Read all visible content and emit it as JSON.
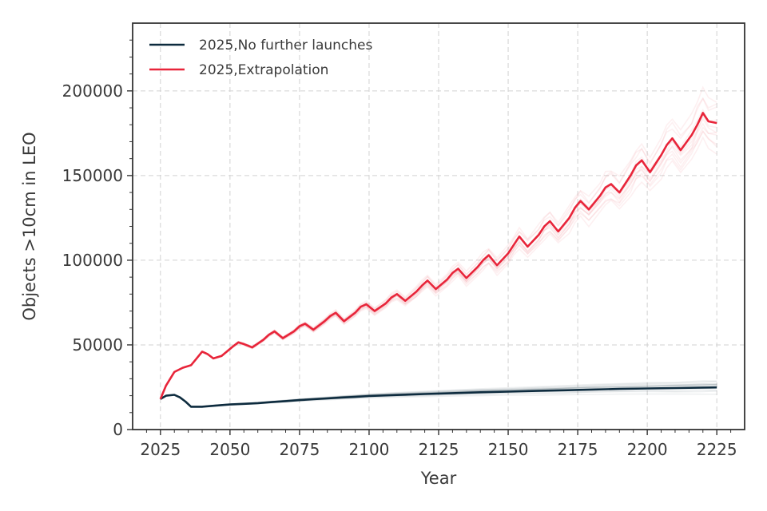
{
  "chart_data": {
    "type": "line",
    "xlabel": "Year",
    "ylabel": "Objects >10cm in LEO",
    "xlim": [
      2015,
      2235
    ],
    "ylim": [
      0,
      240000
    ],
    "xticks": [
      2025,
      2050,
      2075,
      2100,
      2125,
      2150,
      2175,
      2200,
      2225
    ],
    "yticks": [
      0,
      50000,
      100000,
      150000,
      200000
    ],
    "grid": true,
    "legend_position": "top-left",
    "series": [
      {
        "name": "2025,No further launches",
        "color": "#0d2b3e",
        "x": [
          2025,
          2027,
          2030,
          2032,
          2034,
          2036,
          2040,
          2045,
          2050,
          2055,
          2060,
          2065,
          2070,
          2075,
          2080,
          2085,
          2090,
          2095,
          2100,
          2110,
          2120,
          2130,
          2140,
          2150,
          2160,
          2170,
          2180,
          2190,
          2200,
          2210,
          2220,
          2225
        ],
        "y": [
          18000,
          20000,
          20500,
          19000,
          16500,
          13500,
          13500,
          14200,
          14800,
          15200,
          15600,
          16200,
          16800,
          17400,
          17900,
          18400,
          18900,
          19300,
          19800,
          20400,
          21000,
          21500,
          22000,
          22400,
          22800,
          23200,
          23600,
          24000,
          24300,
          24500,
          24800,
          24900
        ]
      },
      {
        "name": "2025,Extrapolation",
        "color": "#e8253a",
        "x": [
          2025,
          2027,
          2030,
          2033,
          2036,
          2038,
          2040,
          2042,
          2044,
          2047,
          2051,
          2053,
          2055,
          2058,
          2062,
          2064,
          2066,
          2069,
          2073,
          2075,
          2077,
          2080,
          2084,
          2086,
          2088,
          2091,
          2095,
          2097,
          2099,
          2102,
          2106,
          2108,
          2110,
          2113,
          2117,
          2119,
          2121,
          2124,
          2128,
          2130,
          2132,
          2135,
          2139,
          2141,
          2143,
          2146,
          2150,
          2152,
          2154,
          2157,
          2161,
          2163,
          2165,
          2168,
          2172,
          2174,
          2176,
          2179,
          2183,
          2185,
          2187,
          2190,
          2194,
          2196,
          2198,
          2201,
          2205,
          2207,
          2209,
          2212,
          2216,
          2218,
          2220,
          2222,
          2225
        ],
        "y": [
          18000,
          26000,
          34000,
          36500,
          38000,
          42000,
          46000,
          44500,
          42000,
          43500,
          49000,
          51500,
          50500,
          48500,
          53000,
          56000,
          58000,
          54000,
          58000,
          61000,
          62500,
          59000,
          64000,
          67000,
          69000,
          64000,
          69000,
          72500,
          74000,
          70000,
          74500,
          78000,
          80000,
          76000,
          81500,
          85000,
          88000,
          83000,
          88500,
          92500,
          95000,
          89500,
          96000,
          100000,
          103000,
          97000,
          104000,
          109000,
          114000,
          108000,
          115000,
          120000,
          123000,
          117000,
          125000,
          131000,
          135000,
          130000,
          138000,
          143000,
          145000,
          140000,
          150000,
          156000,
          159000,
          152000,
          162000,
          168000,
          172000,
          165000,
          174000,
          180000,
          187000,
          182000,
          181000
        ]
      }
    ]
  }
}
